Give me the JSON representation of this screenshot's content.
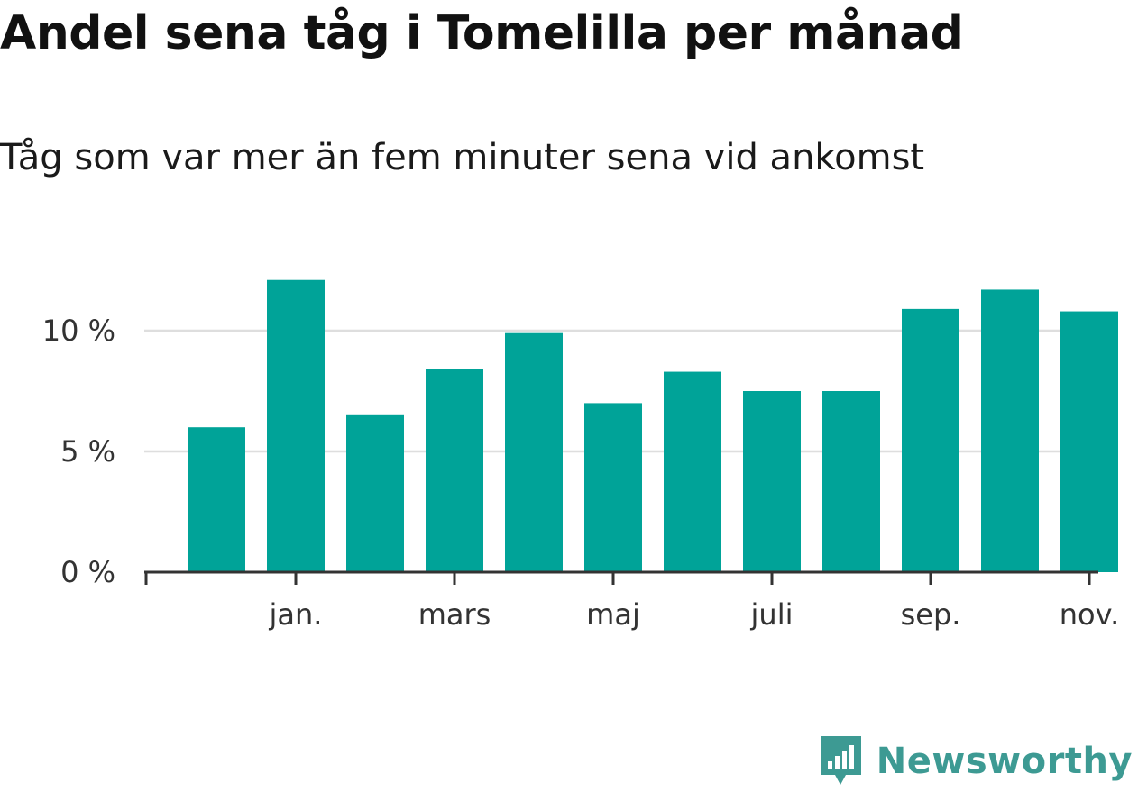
{
  "header": {
    "title": "Andel sena tåg i Tomelilla per månad",
    "subtitle": "Tåg som var mer än fem minuter sena vid ankomst"
  },
  "brand": {
    "name": "Newsworthy",
    "icon": "bar-chart-speech-bubble-icon",
    "color": "#3d9a93"
  },
  "chart_data": {
    "type": "bar",
    "bar_color": "#00a398",
    "x_tick_labels": [
      "jan.",
      "mars",
      "maj",
      "juli",
      "sep.",
      "nov."
    ],
    "x_tick_bar_index": [
      1,
      3,
      5,
      7,
      9,
      11
    ],
    "values": [
      6.0,
      12.1,
      6.5,
      8.4,
      9.9,
      7.0,
      8.3,
      7.5,
      7.5,
      10.9,
      11.7,
      10.8
    ],
    "y_ticks": [
      0,
      5,
      10
    ],
    "y_tick_labels": [
      "0 %",
      "5 %",
      "10 %"
    ],
    "ylim": [
      0,
      12.5
    ],
    "grid": true
  }
}
